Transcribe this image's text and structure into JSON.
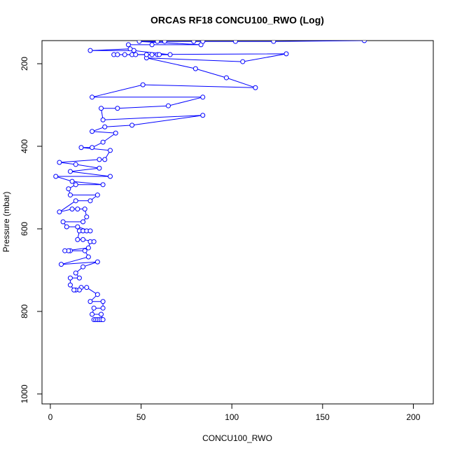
{
  "chart_data": {
    "type": "scatter",
    "lines": true,
    "title": "ORCAS RF18 CONCU100_RWO (Log)",
    "x_label": "CONCU100_RWO",
    "y_label": "Pressure (mbar)",
    "xlim": [
      -4.6,
      211
    ],
    "ylim": [
      1024,
      144
    ],
    "xticks": [
      0,
      50,
      100,
      150,
      200
    ],
    "yticks": [
      200,
      400,
      600,
      800,
      1000
    ],
    "x": [
      24,
      25,
      26,
      27,
      28,
      29,
      28,
      23,
      24,
      29,
      29,
      22,
      26,
      20,
      17,
      16,
      14,
      13,
      11,
      11,
      16,
      14,
      18,
      26,
      6,
      21,
      19,
      11,
      10,
      8,
      21,
      22,
      24,
      18,
      15,
      16,
      18,
      20,
      22,
      15,
      9,
      7,
      18,
      20,
      19,
      15,
      12,
      5,
      14,
      22,
      26,
      11,
      10,
      14,
      29,
      12,
      3,
      33,
      11,
      27,
      14,
      5,
      27,
      30,
      33,
      17,
      23,
      29,
      36,
      23,
      30,
      45,
      84,
      29,
      28,
      37,
      65,
      84,
      23,
      51,
      113,
      97,
      80,
      53,
      106,
      130,
      35,
      37,
      41,
      45,
      47,
      53,
      56,
      59,
      60,
      66,
      46,
      22,
      44,
      43,
      56,
      83,
      49,
      59,
      63,
      79,
      84,
      102,
      123,
      173
    ],
    "series": [
      {
        "color": "#0000ff",
        "values": [
          820,
          820,
          820,
          820,
          820,
          820,
          807,
          807,
          792,
          792,
          776,
          776,
          759,
          742,
          742,
          748,
          748,
          748,
          736,
          719,
          719,
          707,
          692,
          680,
          686,
          668,
          653,
          653,
          653,
          653,
          646,
          631,
          631,
          626,
          626,
          605,
          605,
          605,
          605,
          595,
          595,
          583,
          583,
          571,
          552,
          552,
          552,
          559,
          532,
          532,
          518,
          518,
          503,
          493,
          493,
          485,
          473,
          473,
          461,
          453,
          444,
          439,
          432,
          432,
          410,
          403,
          403,
          390,
          368,
          364,
          353,
          349,
          325,
          336,
          308,
          308,
          302,
          281,
          281,
          251,
          258,
          234,
          212,
          186,
          195,
          176,
          178,
          178,
          178,
          178,
          178,
          178,
          178,
          178,
          178,
          178,
          168,
          168,
          164,
          154,
          154,
          154,
          146,
          146,
          146,
          146,
          146,
          146,
          146,
          144
        ]
      }
    ]
  }
}
